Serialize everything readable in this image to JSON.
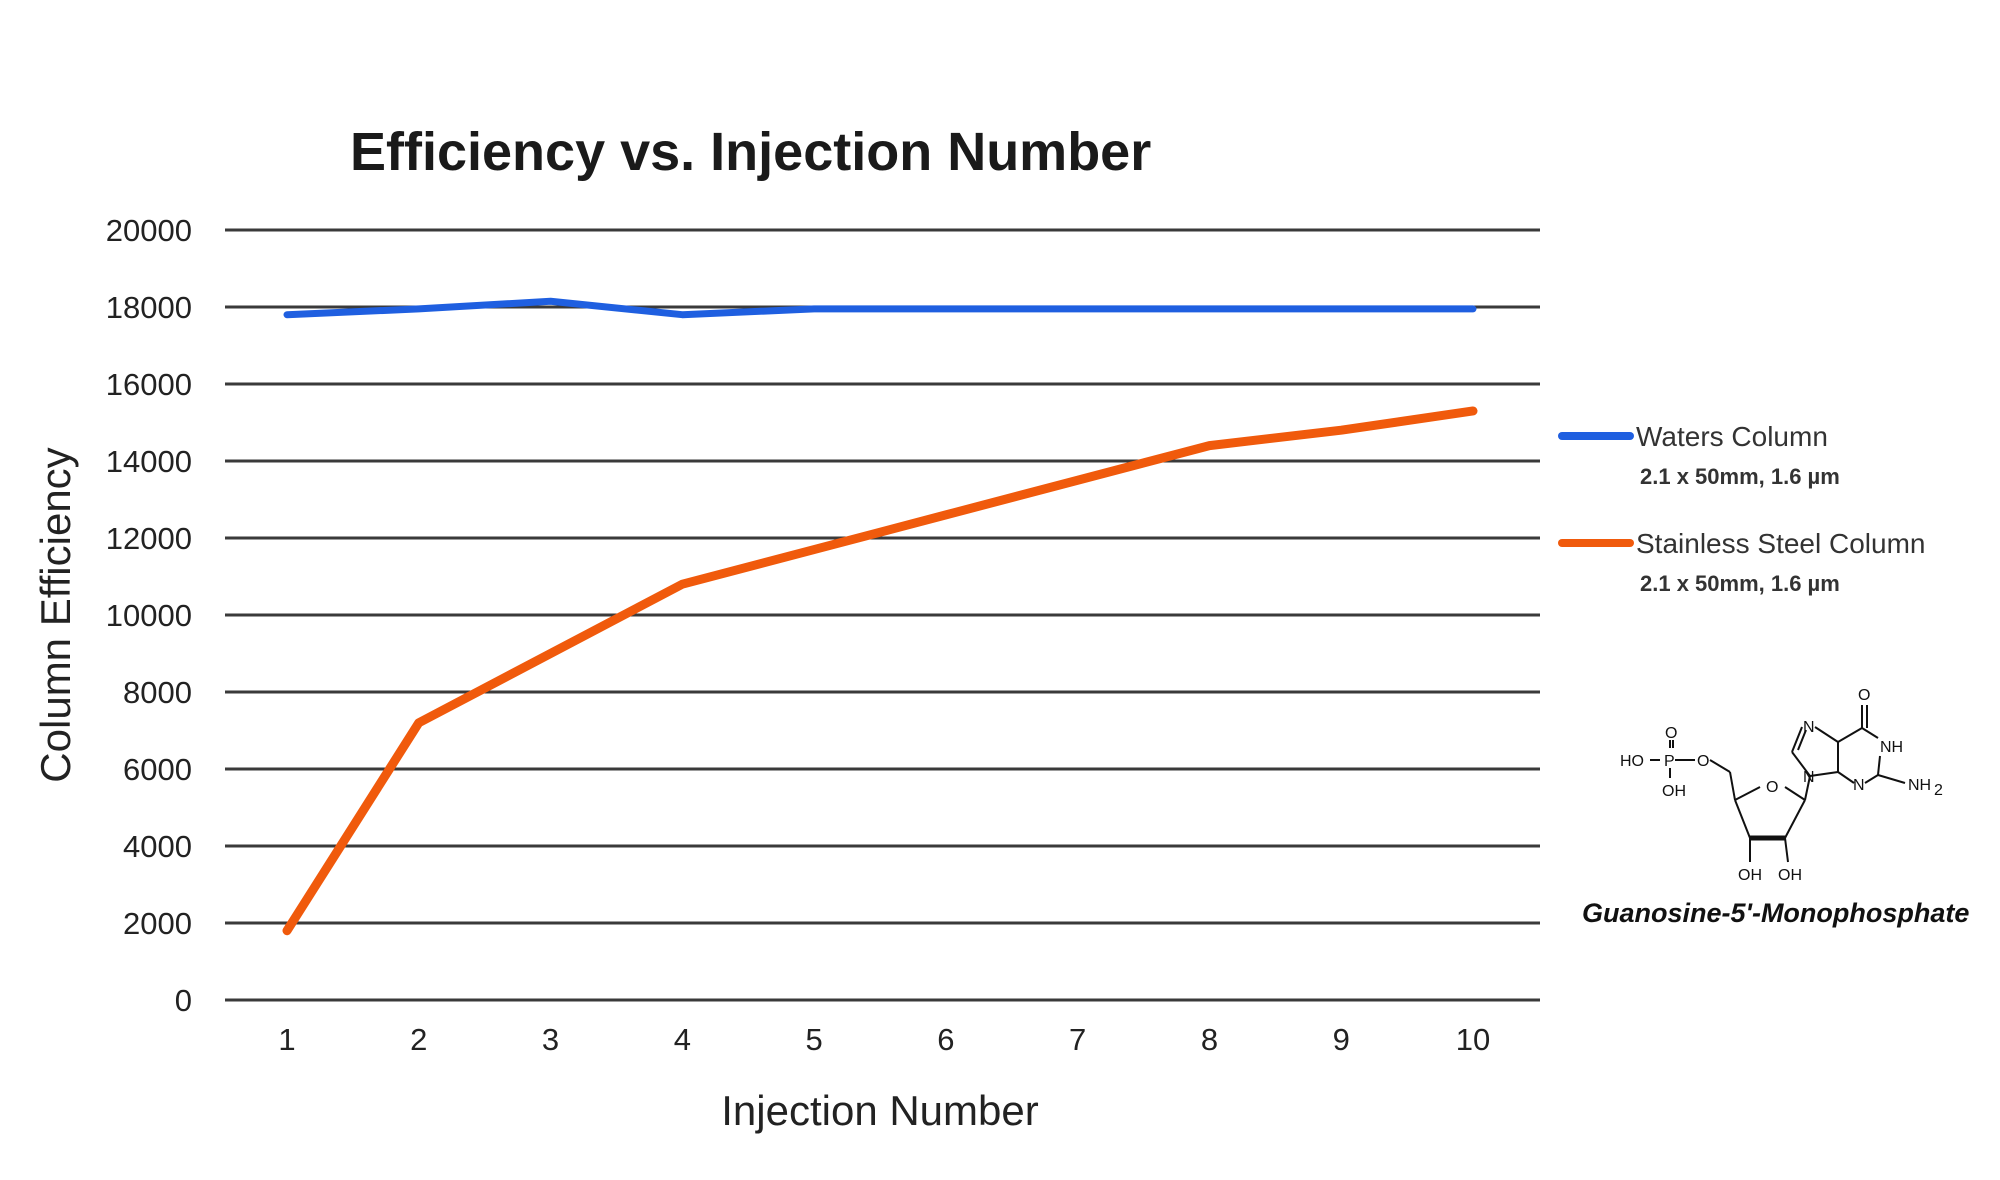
{
  "chart_data": {
    "type": "line",
    "title": "Efficiency  vs. Injection Number",
    "xlabel": "Injection Number",
    "ylabel": "Column Efficiency",
    "ylim": [
      0,
      20000
    ],
    "yticks": [
      "0",
      "2000",
      "4000",
      "6000",
      "8000",
      "10000",
      "12000",
      "14000",
      "16000",
      "18000",
      "20000"
    ],
    "categories": [
      "1",
      "2",
      "3",
      "4",
      "5",
      "6",
      "7",
      "8",
      "9",
      "10"
    ],
    "grid": true,
    "legend_position": "right",
    "series": [
      {
        "name": "Waters Column",
        "detail": "2.1 x 50mm, 1.6 µm",
        "color": "#1f5fe0",
        "values": [
          17800,
          17950,
          18150,
          17800,
          17950,
          17950,
          17950,
          17950,
          17950,
          17950
        ]
      },
      {
        "name": "Stainless Steel Column",
        "detail": "2.1 x 50mm, 1.6 µm",
        "color": "#f05a0c",
        "values": [
          1800,
          7200,
          9000,
          10800,
          11700,
          12600,
          13500,
          14400,
          14800,
          15300
        ]
      }
    ]
  },
  "molecule": {
    "caption": "Guanosine-5'-Monophosphate",
    "labels": {
      "ho": "HO",
      "p": "P",
      "o": "O",
      "oh": "OH",
      "nh": "NH",
      "nh2": "NH",
      "sub2": "2",
      "n": "N"
    }
  }
}
